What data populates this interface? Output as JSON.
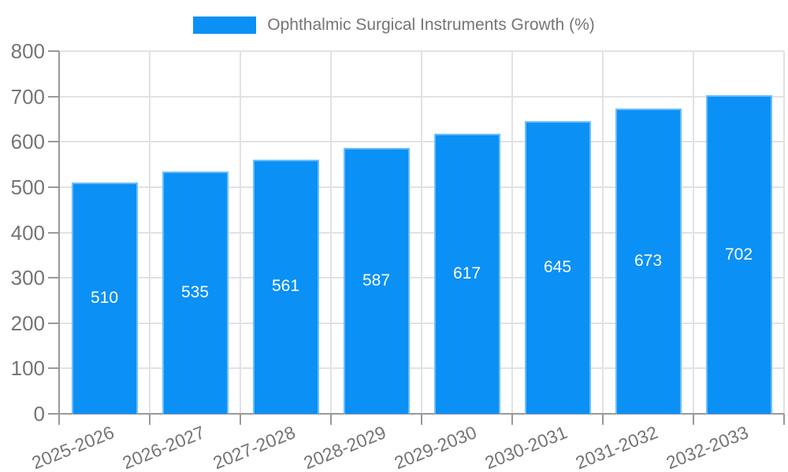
{
  "colors": {
    "bar_fill": "#0B90F5",
    "bar_edge": "#6CBDFB",
    "axis": "#999999",
    "grid": "#E2E2E2",
    "text": "#757575",
    "value_text": "#FFFFFF"
  },
  "legend": {
    "label": "Ophthalmic Surgical Instruments Growth (%)",
    "position": "top"
  },
  "chart_data": {
    "type": "bar",
    "title": "Ophthalmic Surgical Instruments Growth (%)",
    "categories": [
      "2025-2026",
      "2026-2027",
      "2027-2028",
      "2028-2029",
      "2029-2030",
      "2030-2031",
      "2031-2032",
      "2032-2033"
    ],
    "values": [
      510,
      535,
      561,
      587,
      617,
      645,
      673,
      702
    ],
    "series": [
      {
        "name": "Ophthalmic Surgical Instruments Growth (%)",
        "values": [
          510,
          535,
          561,
          587,
          617,
          645,
          673,
          702
        ]
      }
    ],
    "value_labels_shown": true,
    "xlabel": "",
    "ylabel": "",
    "ylim": [
      0,
      800
    ],
    "yticks": [
      0,
      100,
      200,
      300,
      400,
      500,
      600,
      700,
      800
    ],
    "grid": true,
    "legend_position": "top"
  }
}
